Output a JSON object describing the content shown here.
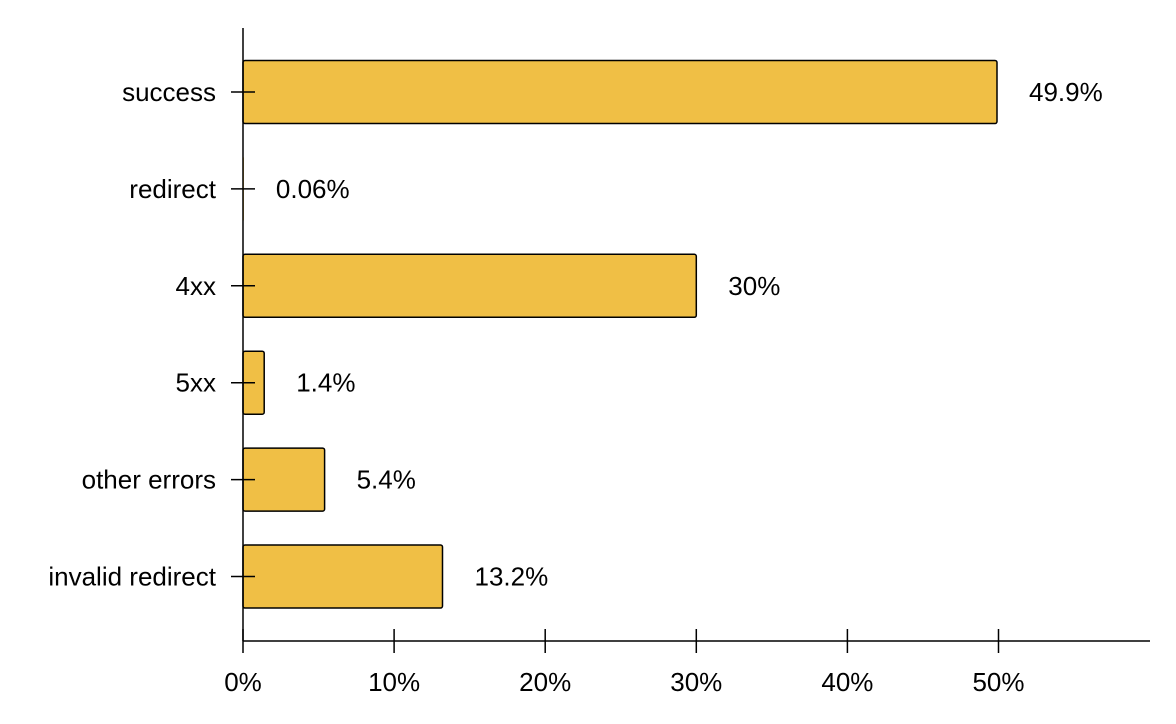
{
  "chart_data": {
    "type": "bar",
    "orientation": "horizontal",
    "categories": [
      "success",
      "redirect",
      "4xx",
      "5xx",
      "other errors",
      "invalid redirect"
    ],
    "values": [
      49.9,
      0.06,
      30,
      1.4,
      5.4,
      13.2
    ],
    "value_labels": [
      "49.9%",
      "0.06%",
      "30%",
      "1.4%",
      "5.4%",
      "13.2%"
    ],
    "x_ticks": [
      0,
      10,
      20,
      30,
      40,
      50
    ],
    "x_tick_labels": [
      "0%",
      "10%",
      "20%",
      "30%",
      "40%",
      "50%"
    ],
    "xlim": [
      0,
      60
    ],
    "title": "",
    "xlabel": "",
    "ylabel": "",
    "grid": false,
    "colors": {
      "bar_fill": "#F0BF45",
      "bar_stroke": "#000000",
      "axis": "#000000"
    }
  }
}
